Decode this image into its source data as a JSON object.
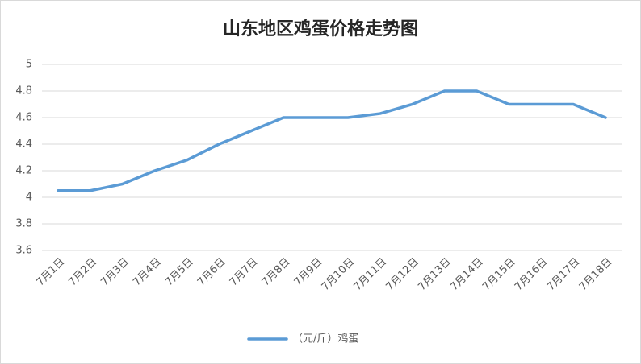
{
  "chart_data": {
    "type": "line",
    "title": "山东地区鸡蛋价格走势图",
    "categories": [
      "7月1日",
      "7月2日",
      "7月3日",
      "7月4日",
      "7月5日",
      "7月6日",
      "7月7日",
      "7月8日",
      "7月9日",
      "7月10日",
      "7月11日",
      "7月12日",
      "7月13日",
      "7月14日",
      "7月15日",
      "7月16日",
      "7月17日",
      "7月18日"
    ],
    "series": [
      {
        "name": "（元/斤）鸡蛋",
        "color": "#5b9bd5",
        "values": [
          4.05,
          4.05,
          4.1,
          4.2,
          4.28,
          4.4,
          4.5,
          4.6,
          4.6,
          4.6,
          4.63,
          4.7,
          4.8,
          4.8,
          4.7,
          4.7,
          4.7,
          4.6
        ]
      }
    ],
    "ylim": [
      3.6,
      5
    ],
    "yticks": [
      3.6,
      3.8,
      4,
      4.2,
      4.4,
      4.6,
      4.8,
      5
    ],
    "grid": true,
    "legend": "bottom"
  }
}
